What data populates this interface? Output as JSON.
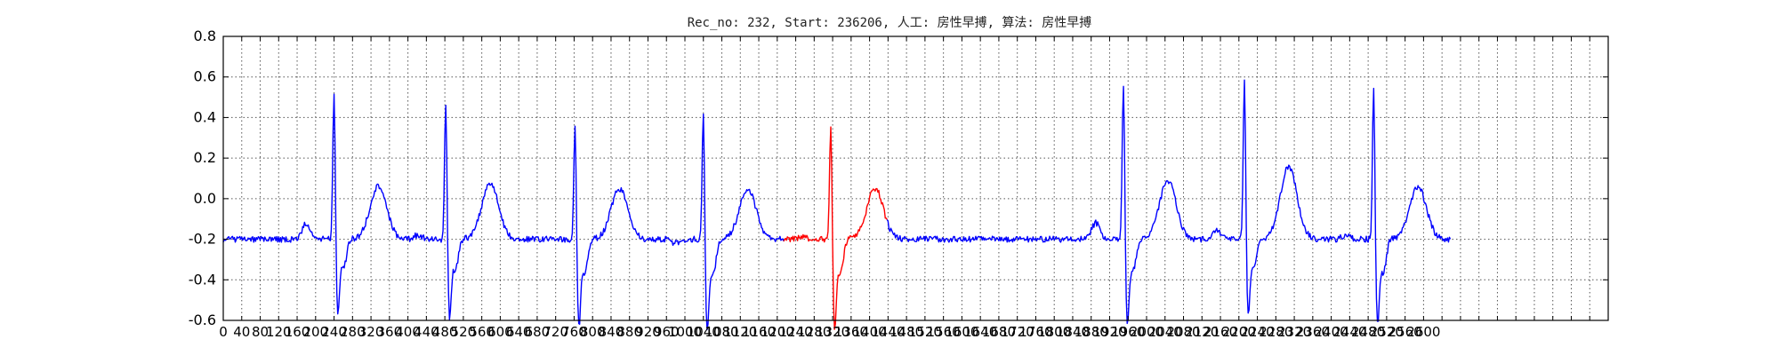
{
  "chart_data": {
    "type": "line",
    "title": "Rec_no: 232, Start: 236206, 人工: 房性早搏, 算法: 房性早搏",
    "xlabel": "",
    "ylabel": "",
    "xlim": [
      0,
      1500
    ],
    "ylim": [
      -0.6,
      0.8
    ],
    "grid": true,
    "y_ticks": [
      "-0.6",
      "-0.4",
      "-0.2",
      "0.0",
      "0.2",
      "0.4",
      "0.6",
      "0.8"
    ],
    "x_tick_step": 20,
    "x_tick_label_step": 40,
    "x_tick_labels": [
      "0",
      "40",
      "80",
      "120",
      "160",
      "200",
      "240",
      "280",
      "320",
      "360",
      "400",
      "440",
      "480",
      "520",
      "560",
      "600",
      "640",
      "680",
      "720",
      "760",
      "800",
      "840",
      "880",
      "920",
      "960",
      "1000",
      "1040",
      "1080",
      "1120",
      "1160",
      "1200",
      "1240",
      "1280",
      "1320",
      "1360",
      "1400",
      "1440",
      "1480",
      "1520",
      "1560",
      "1600",
      "1640",
      "1680",
      "1720",
      "1760",
      "1800",
      "1840",
      "1880",
      "1920",
      "1960",
      "2000",
      "2040",
      "2080",
      "2120",
      "2160",
      "2200",
      "2240",
      "2280",
      "2320",
      "2360",
      "2400",
      "2440",
      "2480",
      "2520",
      "2560",
      "2600"
    ],
    "x_label_scale": 2,
    "n_samples": 1330,
    "highlight_range": [
      607,
      719
    ],
    "colors": {
      "normal": "#0000ff",
      "highlight": "#ff0000"
    },
    "baseline": -0.2,
    "beats": [
      {
        "r_sample": 120,
        "r_peak": 0.56,
        "s_trough": -0.52,
        "t_peak": 0.06,
        "p_peak": -0.12
      },
      {
        "r_sample": 241,
        "r_peak": 0.51,
        "s_trough": -0.54,
        "t_peak": 0.08,
        "p_peak": -0.18
      },
      {
        "r_sample": 381,
        "r_peak": 0.4,
        "s_trough": -0.58,
        "t_peak": 0.05,
        "p_peak": -0.2
      },
      {
        "r_sample": 520,
        "r_peak": 0.46,
        "s_trough": -0.6,
        "t_peak": 0.05,
        "p_peak": -0.22
      },
      {
        "r_sample": 658,
        "r_peak": 0.4,
        "s_trough": -0.58,
        "t_peak": 0.05,
        "p_peak": -0.19
      },
      {
        "r_sample": 975,
        "r_peak": 0.6,
        "s_trough": -0.56,
        "t_peak": 0.09,
        "p_peak": -0.12
      },
      {
        "r_sample": 1106,
        "r_peak": 0.61,
        "s_trough": -0.52,
        "t_peak": 0.16,
        "p_peak": -0.16
      },
      {
        "r_sample": 1246,
        "r_peak": 0.57,
        "s_trough": -0.57,
        "t_peak": 0.06,
        "p_peak": -0.18
      }
    ]
  }
}
